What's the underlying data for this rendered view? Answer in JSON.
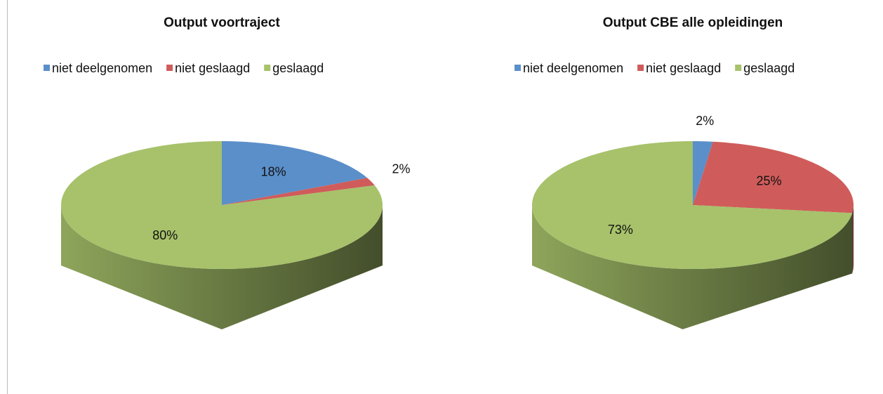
{
  "chart_data": [
    {
      "type": "pie",
      "title": "Output voortraject",
      "categories": [
        "niet deelgenomen",
        "niet geslaagd",
        "geslaagd"
      ],
      "values": [
        18,
        2,
        80
      ],
      "value_labels": [
        "18%",
        "2%",
        "80%"
      ],
      "colors": [
        "#5b8fc9",
        "#cf5c5a",
        "#a7c26b"
      ],
      "legend": "top"
    },
    {
      "type": "pie",
      "title": "Output CBE alle opleidingen",
      "categories": [
        "niet deelgenomen",
        "niet geslaagd",
        "geslaagd"
      ],
      "values": [
        2,
        25,
        73
      ],
      "value_labels": [
        "2%",
        "25%",
        "73%"
      ],
      "colors": [
        "#5b8fc9",
        "#cf5c5a",
        "#a7c26b"
      ],
      "legend": "top"
    }
  ]
}
